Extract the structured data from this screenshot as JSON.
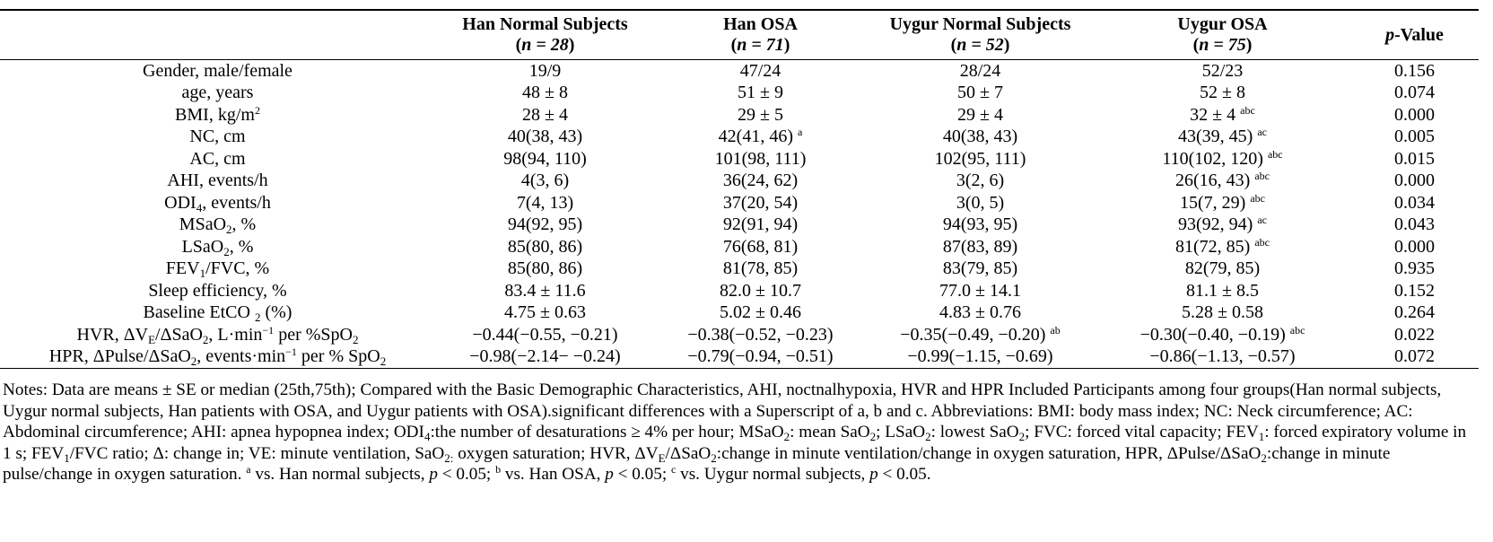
{
  "columns": [
    {
      "name": "Han Normal Subjects",
      "n": "n = 28"
    },
    {
      "name": "Han OSA",
      "n": "n = 71"
    },
    {
      "name": "Uygur Normal Subjects",
      "n": "n = 52"
    },
    {
      "name": "Uygur OSA",
      "n": "n = 75"
    }
  ],
  "pvalue_header": {
    "p": "p",
    "rest": "-Value"
  },
  "rows": [
    {
      "label": {
        "pre": "Gender, male/female"
      },
      "cells": [
        {
          "v": "19/9"
        },
        {
          "v": "47/24"
        },
        {
          "v": "28/24"
        },
        {
          "v": "52/23"
        }
      ],
      "p": "0.156"
    },
    {
      "label": {
        "pre": "age, years"
      },
      "cells": [
        {
          "v": "48 ± 8"
        },
        {
          "v": "51 ± 9"
        },
        {
          "v": "50 ± 7"
        },
        {
          "v": "52 ± 8"
        }
      ],
      "p": "0.074"
    },
    {
      "label": {
        "pre": "BMI, kg/m",
        "sup": "2"
      },
      "cells": [
        {
          "v": "28 ± 4"
        },
        {
          "v": "29 ± 5"
        },
        {
          "v": "29 ± 4"
        },
        {
          "v": "32 ± 4 ",
          "s": "abc"
        }
      ],
      "p": "0.000"
    },
    {
      "label": {
        "pre": "NC, cm"
      },
      "cells": [
        {
          "v": "40(38, 43)"
        },
        {
          "v": "42(41, 46) ",
          "s": "a"
        },
        {
          "v": "40(38, 43)"
        },
        {
          "v": "43(39, 45) ",
          "s": "ac"
        }
      ],
      "p": "0.005"
    },
    {
      "label": {
        "pre": "AC, cm"
      },
      "cells": [
        {
          "v": "98(94, 110)"
        },
        {
          "v": "101(98, 111)"
        },
        {
          "v": "102(95, 111)"
        },
        {
          "v": "110(102, 120) ",
          "s": "abc"
        }
      ],
      "p": "0.015"
    },
    {
      "label": {
        "pre": "AHI, events/h"
      },
      "cells": [
        {
          "v": "4(3, 6)"
        },
        {
          "v": "36(24, 62)"
        },
        {
          "v": "3(2, 6)"
        },
        {
          "v": "26(16, 43) ",
          "s": "abc"
        }
      ],
      "p": "0.000"
    },
    {
      "label": {
        "pre": "ODI",
        "sub": "4",
        "post": ", events/h"
      },
      "cells": [
        {
          "v": "7(4, 13)"
        },
        {
          "v": "37(20, 54)"
        },
        {
          "v": "3(0, 5)"
        },
        {
          "v": "15(7, 29) ",
          "s": "abc"
        }
      ],
      "p": "0.034"
    },
    {
      "label": {
        "pre": "MSaO",
        "sub": "2",
        "post": ", %"
      },
      "cells": [
        {
          "v": "94(92, 95)"
        },
        {
          "v": "92(91, 94)"
        },
        {
          "v": "94(93, 95)"
        },
        {
          "v": "93(92, 94) ",
          "s": "ac"
        }
      ],
      "p": "0.043"
    },
    {
      "label": {
        "pre": "LSaO",
        "sub": "2",
        "post": ", %"
      },
      "cells": [
        {
          "v": "85(80, 86)"
        },
        {
          "v": "76(68, 81)"
        },
        {
          "v": "87(83, 89)"
        },
        {
          "v": "81(72, 85) ",
          "s": "abc"
        }
      ],
      "p": "0.000"
    },
    {
      "label": {
        "pre": "FEV",
        "sub": "1",
        "post": "/FVC, %"
      },
      "cells": [
        {
          "v": "85(80, 86)"
        },
        {
          "v": "81(78, 85)"
        },
        {
          "v": "83(79, 85)"
        },
        {
          "v": "82(79, 85)"
        }
      ],
      "p": "0.935"
    },
    {
      "label": {
        "pre": "Sleep efficiency, %"
      },
      "cells": [
        {
          "v": "83.4 ± 11.6"
        },
        {
          "v": "82.0 ± 10.7"
        },
        {
          "v": "77.0 ± 14.1"
        },
        {
          "v": "81.1 ± 8.5"
        }
      ],
      "p": "0.152"
    },
    {
      "label": {
        "pre": "Baseline EtCO ",
        "sub": "2",
        "post": " (%)"
      },
      "cells": [
        {
          "v": "4.75 ± 0.63"
        },
        {
          "v": "5.02 ± 0.46"
        },
        {
          "v": "4.83 ± 0.76"
        },
        {
          "v": "5.28 ± 0.58"
        }
      ],
      "p": "0.264"
    },
    {
      "label": {
        "pre": "HVR, ΔV",
        "sub": "E",
        "post": "/ΔSaO",
        "sub2": "2",
        "post2": ", L·min",
        "sup": "−1",
        "post3": " per %SpO",
        "sub3": "2"
      },
      "cells": [
        {
          "v": "−0.44(−0.55, −0.21)"
        },
        {
          "v": "−0.38(−0.52, −0.23)"
        },
        {
          "v": "−0.35(−0.49, −0.20) ",
          "s": "ab"
        },
        {
          "v": "−0.30(−0.40, −0.19) ",
          "s": "abc"
        }
      ],
      "p": "0.022"
    },
    {
      "label": {
        "pre": "HPR, ΔPulse/ΔSaO",
        "sub": "2",
        "post": ", events·min",
        "sup": "−1",
        "post3": " per % SpO",
        "sub3": "2"
      },
      "cells": [
        {
          "v": "−0.98(−2.14− −0.24)"
        },
        {
          "v": "−0.79(−0.94, −0.51)"
        },
        {
          "v": "−0.99(−1.15, −0.69)"
        },
        {
          "v": "−0.86(−1.13, −0.57)"
        }
      ],
      "p": "0.072"
    }
  ],
  "notes": {
    "part1": "Notes: Data are means ± SE or median (25th,75th); Compared with the Basic Demographic Characteristics, AHI, noctnalhypoxia, HVR and HPR Included Participants among four groups(Han normal subjects, Uygur normal subjects, Han patients with OSA, and Uygur patients with OSA).significant differences with a Superscript of a, b and c. Abbreviations: BMI: body mass index; NC: Neck circumference; AC: Abdominal circumference; AHI: apnea hypopnea index; ODI",
    "odi_sub": "4",
    "part2": ":the number of desaturations ≥ 4% per hour; MSaO",
    "ms_sub": "2",
    "part3": ": mean SaO",
    "ms_sub2": "2",
    "part4": "; LSaO",
    "ls_sub": "2",
    "part5": ": lowest SaO",
    "ls_sub2": "2",
    "part6": "; FVC: forced vital capacity; FEV",
    "fev_sub": "1",
    "part7": ": forced expiratory volume in 1 s; FEV",
    "fev_sub2": "1",
    "part8": "/FVC ratio; Δ: change in; VE: minute ventilation, SaO",
    "sao_sub": "2:",
    "part9": " oxygen saturation; HVR, ΔV",
    "ve_sub": "E",
    "part10": "/ΔSaO",
    "sao_sub2": "2",
    "part11": ":change in minute ventilation/change in oxygen saturation, HPR, ΔPulse/ΔSaO",
    "sao_sub3": "2",
    "part12": ":change in minute pulse/change in oxygen saturation. ",
    "sup_a": "a",
    "part13": " vs. Han normal subjects, ",
    "p1": "p",
    "part14": " < 0.05; ",
    "sup_b": "b",
    "part15": " vs. Han OSA, ",
    "p2": "p",
    "part16": " < 0.05; ",
    "sup_c": "c",
    "part17": " vs. Uygur normal subjects, ",
    "p3": "p",
    "part18": " < 0.05."
  }
}
